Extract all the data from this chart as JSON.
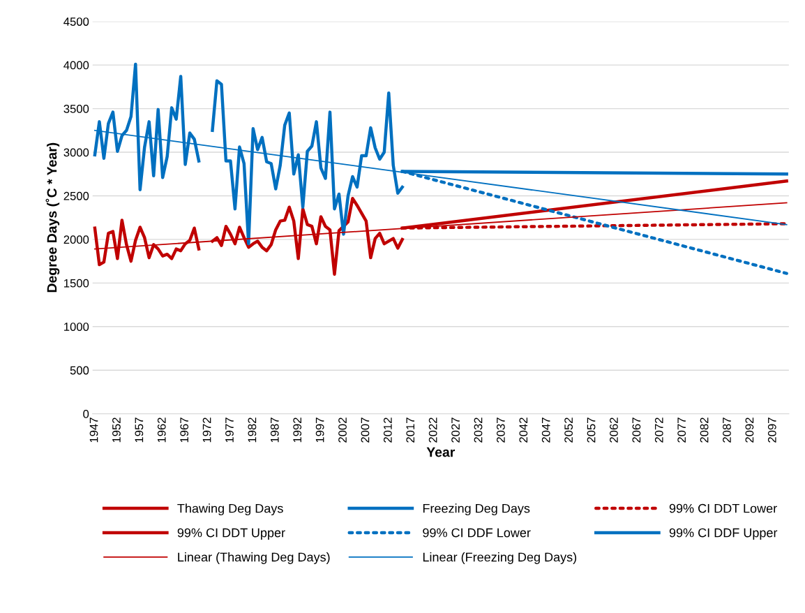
{
  "chart_data": {
    "type": "line",
    "xlabel": "Year",
    "ylabel": "Degree Days (˚C * Year)",
    "x": [
      1947,
      1948,
      1949,
      1950,
      1951,
      1952,
      1953,
      1954,
      1955,
      1956,
      1957,
      1958,
      1959,
      1960,
      1961,
      1962,
      1963,
      1964,
      1965,
      1966,
      1967,
      1968,
      1969,
      1970,
      1971,
      1972,
      1973,
      1974,
      1975,
      1976,
      1977,
      1978,
      1979,
      1980,
      1981,
      1982,
      1983,
      1984,
      1985,
      1986,
      1987,
      1988,
      1989,
      1990,
      1991,
      1992,
      1993,
      1994,
      1995,
      1996,
      1997,
      1998,
      1999,
      2000,
      2001,
      2002,
      2003,
      2004,
      2005,
      2006,
      2007,
      2008,
      2009,
      2010,
      2011,
      2012,
      2013,
      2014,
      2015
    ],
    "series": [
      {
        "name": "Thawing Deg Days",
        "color": "#c00000",
        "line_style": "solid",
        "values": [
          2130,
          1710,
          1740,
          2070,
          2090,
          1780,
          2220,
          1940,
          1750,
          1990,
          2140,
          2020,
          1790,
          1940,
          1890,
          1810,
          1830,
          1780,
          1890,
          1870,
          1950,
          1990,
          2130,
          1890,
          null,
          null,
          1980,
          2020,
          1930,
          2150,
          2060,
          1950,
          2140,
          2020,
          1910,
          1950,
          1980,
          1910,
          1870,
          1940,
          2110,
          2210,
          2220,
          2370,
          2210,
          1780,
          2350,
          2170,
          2150,
          1950,
          2260,
          2150,
          2110,
          1600,
          2100,
          2150,
          2200,
          2470,
          2390,
          2300,
          2210,
          1790,
          2010,
          2070,
          1950,
          1980,
          2010,
          1900,
          2000
        ]
      },
      {
        "name": "Freezing Deg Days",
        "color": "#0070c0",
        "line_style": "solid",
        "values": [
          2970,
          3350,
          2930,
          3330,
          3460,
          3010,
          3190,
          3250,
          3410,
          4010,
          2570,
          3060,
          3350,
          2730,
          3490,
          2710,
          2950,
          3510,
          3380,
          3870,
          2860,
          3220,
          3150,
          2900,
          null,
          null,
          3250,
          3820,
          3780,
          2900,
          2900,
          2350,
          3060,
          2870,
          1950,
          3270,
          3030,
          3170,
          2890,
          2870,
          2580,
          2850,
          3310,
          3450,
          2750,
          2970,
          2370,
          3010,
          3070,
          3350,
          2820,
          2700,
          3460,
          2350,
          2520,
          2060,
          2500,
          2720,
          2600,
          2960,
          2960,
          3280,
          3050,
          2920,
          3000,
          3680,
          2850,
          2530,
          2600
        ]
      },
      {
        "name": "99% CI DDT Lower",
        "color": "#c00000",
        "line_style": "dotted",
        "x": [
          2015,
          2100
        ],
        "values": [
          2130,
          2180
        ]
      },
      {
        "name": "99% CI DDT Upper",
        "color": "#c00000",
        "line_style": "solid",
        "x": [
          2015,
          2100
        ],
        "values": [
          2130,
          2670
        ]
      },
      {
        "name": "99% CI DDF Lower",
        "color": "#0070c0",
        "line_style": "dotted",
        "x": [
          2015,
          2100
        ],
        "values": [
          2780,
          1610
        ]
      },
      {
        "name": "99% CI DDF Upper",
        "color": "#0070c0",
        "line_style": "solid",
        "x": [
          2015,
          2100
        ],
        "values": [
          2780,
          2750
        ]
      },
      {
        "name": "Linear (Thawing Deg Days)",
        "color": "#c00000",
        "line_style": "solid",
        "x": [
          1947,
          2100
        ],
        "values": [
          1890,
          2420
        ]
      },
      {
        "name": "Linear (Freezing Deg Days)",
        "color": "#0070c0",
        "line_style": "solid",
        "x": [
          1947,
          2100
        ],
        "values": [
          3250,
          2170
        ]
      }
    ],
    "xlim": [
      1946.5,
      2100.5
    ],
    "xticks": [
      1947,
      1952,
      1957,
      1962,
      1967,
      1972,
      1977,
      1982,
      1987,
      1992,
      1997,
      2002,
      2007,
      2012,
      2017,
      2022,
      2027,
      2032,
      2037,
      2042,
      2047,
      2052,
      2057,
      2062,
      2067,
      2072,
      2077,
      2082,
      2087,
      2092,
      2097
    ],
    "ylim": [
      0,
      4500
    ],
    "yticks": [
      0,
      500,
      1000,
      1500,
      2000,
      2500,
      3000,
      3500,
      4000,
      4500
    ],
    "grid": "y",
    "legend": "bottom",
    "marker": "none"
  }
}
